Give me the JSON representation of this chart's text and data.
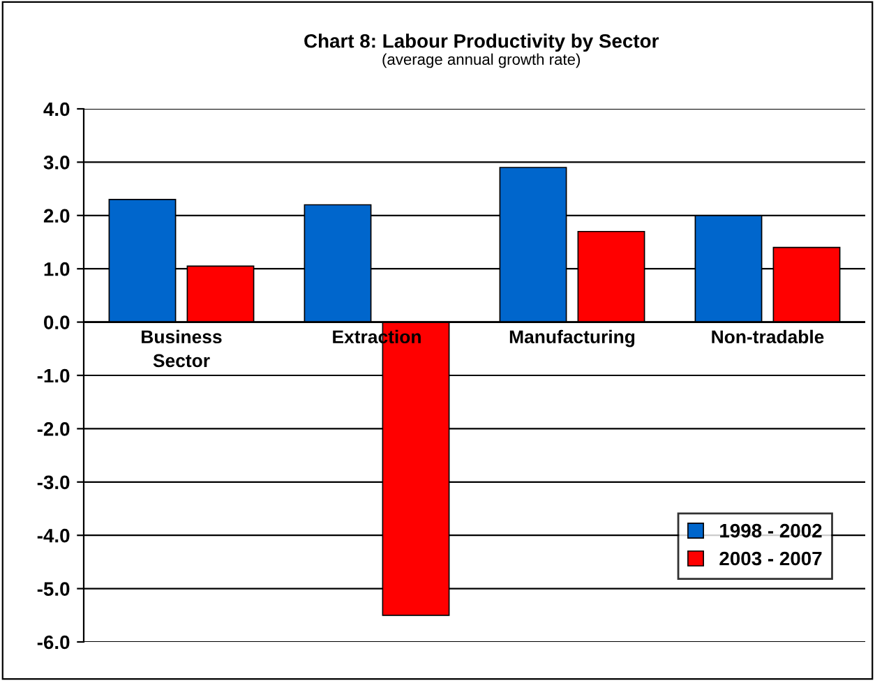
{
  "chart_data": {
    "type": "bar",
    "title": "Chart 8: Labour Productivity by Sector",
    "subtitle": "(average annual growth rate)",
    "categories": [
      "Business\nSector",
      "Extraction",
      "Manufacturing",
      "Non-tradable"
    ],
    "series": [
      {
        "name": "1998 - 2002",
        "color": "#0066cc",
        "values": [
          2.3,
          2.2,
          2.9,
          2.0
        ]
      },
      {
        "name": "2003 - 2007",
        "color": "#ff0000",
        "values": [
          1.05,
          -5.5,
          1.7,
          1.4
        ]
      }
    ],
    "ylim": [
      -6,
      4
    ],
    "yticks": [
      {
        "value": -6,
        "label": "-6.0"
      },
      {
        "value": -5,
        "label": "-5.0"
      },
      {
        "value": -4,
        "label": "-4.0"
      },
      {
        "value": -3,
        "label": "-3.0"
      },
      {
        "value": -2,
        "label": "-2.0"
      },
      {
        "value": -1,
        "label": "-1.0"
      },
      {
        "value": 0,
        "label": "0.0"
      },
      {
        "value": 1,
        "label": "1.0"
      },
      {
        "value": 2,
        "label": "2.0"
      },
      {
        "value": 3,
        "label": "3.0"
      },
      {
        "value": 4,
        "label": "4.0"
      }
    ],
    "grid": "y",
    "legend": "bottom right"
  }
}
